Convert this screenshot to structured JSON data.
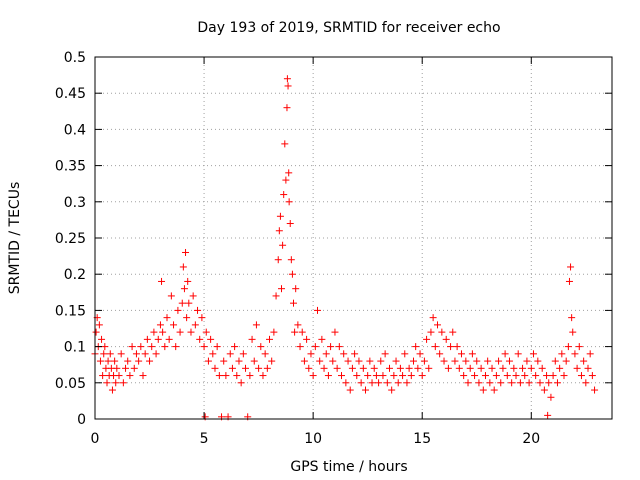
{
  "chart_data": {
    "type": "scatter",
    "title": "Day 193 of 2019, SRMTID for receiver echo",
    "xlabel": "GPS time / hours",
    "ylabel": "SRMTID / TECUs",
    "xlim": [
      0,
      23.7
    ],
    "ylim": [
      0,
      0.5
    ],
    "xticks": [
      0,
      5,
      10,
      15,
      20
    ],
    "xtick_labels": [
      "0",
      "5",
      "10",
      "15",
      "20"
    ],
    "yticks": [
      0,
      0.05,
      0.1,
      0.15,
      0.2,
      0.25,
      0.3,
      0.35,
      0.4,
      0.45,
      0.5
    ],
    "ytick_labels": [
      "0",
      "0.05",
      "0.1",
      "0.15",
      "0.2",
      "0.25",
      "0.3",
      "0.35",
      "0.4",
      "0.45",
      "0.5"
    ],
    "grid": true,
    "marker": "+",
    "color": "#ff0000",
    "series": [
      {
        "name": "SRMTID",
        "points": [
          [
            0.0,
            0.09
          ],
          [
            0.05,
            0.12
          ],
          [
            0.1,
            0.14
          ],
          [
            0.15,
            0.1
          ],
          [
            0.2,
            0.13
          ],
          [
            0.25,
            0.08
          ],
          [
            0.3,
            0.11
          ],
          [
            0.35,
            0.06
          ],
          [
            0.4,
            0.09
          ],
          [
            0.45,
            0.1
          ],
          [
            0.5,
            0.07
          ],
          [
            0.55,
            0.05
          ],
          [
            0.6,
            0.08
          ],
          [
            0.65,
            0.06
          ],
          [
            0.7,
            0.09
          ],
          [
            0.75,
            0.07
          ],
          [
            0.8,
            0.04
          ],
          [
            0.85,
            0.06
          ],
          [
            0.9,
            0.08
          ],
          [
            0.95,
            0.05
          ],
          [
            1.0,
            0.07
          ],
          [
            1.1,
            0.06
          ],
          [
            1.2,
            0.09
          ],
          [
            1.3,
            0.05
          ],
          [
            1.4,
            0.07
          ],
          [
            1.5,
            0.08
          ],
          [
            1.6,
            0.06
          ],
          [
            1.7,
            0.1
          ],
          [
            1.8,
            0.07
          ],
          [
            1.9,
            0.09
          ],
          [
            2.0,
            0.08
          ],
          [
            2.1,
            0.1
          ],
          [
            2.2,
            0.06
          ],
          [
            2.3,
            0.09
          ],
          [
            2.4,
            0.11
          ],
          [
            2.5,
            0.08
          ],
          [
            2.6,
            0.1
          ],
          [
            2.7,
            0.12
          ],
          [
            2.8,
            0.09
          ],
          [
            2.9,
            0.11
          ],
          [
            3.0,
            0.13
          ],
          [
            3.05,
            0.19
          ],
          [
            3.1,
            0.12
          ],
          [
            3.2,
            0.1
          ],
          [
            3.3,
            0.14
          ],
          [
            3.4,
            0.11
          ],
          [
            3.5,
            0.17
          ],
          [
            3.6,
            0.13
          ],
          [
            3.7,
            0.1
          ],
          [
            3.8,
            0.15
          ],
          [
            3.9,
            0.12
          ],
          [
            4.0,
            0.16
          ],
          [
            4.05,
            0.21
          ],
          [
            4.1,
            0.18
          ],
          [
            4.15,
            0.23
          ],
          [
            4.2,
            0.14
          ],
          [
            4.25,
            0.19
          ],
          [
            4.3,
            0.16
          ],
          [
            4.4,
            0.12
          ],
          [
            4.5,
            0.17
          ],
          [
            4.6,
            0.13
          ],
          [
            4.7,
            0.15
          ],
          [
            4.8,
            0.11
          ],
          [
            4.9,
            0.14
          ],
          [
            5.0,
            0.1
          ],
          [
            5.05,
            0.003
          ],
          [
            5.1,
            0.12
          ],
          [
            5.2,
            0.08
          ],
          [
            5.3,
            0.11
          ],
          [
            5.4,
            0.09
          ],
          [
            5.5,
            0.07
          ],
          [
            5.6,
            0.1
          ],
          [
            5.7,
            0.06
          ],
          [
            5.8,
            0.003
          ],
          [
            5.9,
            0.08
          ],
          [
            6.0,
            0.06
          ],
          [
            6.1,
            0.003
          ],
          [
            6.2,
            0.09
          ],
          [
            6.3,
            0.07
          ],
          [
            6.4,
            0.1
          ],
          [
            6.5,
            0.06
          ],
          [
            6.6,
            0.08
          ],
          [
            6.7,
            0.05
          ],
          [
            6.8,
            0.09
          ],
          [
            6.9,
            0.07
          ],
          [
            7.0,
            0.003
          ],
          [
            7.1,
            0.06
          ],
          [
            7.2,
            0.11
          ],
          [
            7.3,
            0.08
          ],
          [
            7.4,
            0.13
          ],
          [
            7.5,
            0.07
          ],
          [
            7.6,
            0.1
          ],
          [
            7.7,
            0.06
          ],
          [
            7.8,
            0.09
          ],
          [
            7.9,
            0.07
          ],
          [
            8.0,
            0.11
          ],
          [
            8.1,
            0.08
          ],
          [
            8.2,
            0.12
          ],
          [
            8.3,
            0.17
          ],
          [
            8.4,
            0.22
          ],
          [
            8.45,
            0.26
          ],
          [
            8.5,
            0.28
          ],
          [
            8.55,
            0.18
          ],
          [
            8.6,
            0.24
          ],
          [
            8.65,
            0.31
          ],
          [
            8.7,
            0.38
          ],
          [
            8.75,
            0.33
          ],
          [
            8.8,
            0.43
          ],
          [
            8.82,
            0.47
          ],
          [
            8.85,
            0.46
          ],
          [
            8.88,
            0.34
          ],
          [
            8.9,
            0.3
          ],
          [
            8.95,
            0.27
          ],
          [
            9.0,
            0.22
          ],
          [
            9.05,
            0.2
          ],
          [
            9.1,
            0.16
          ],
          [
            9.15,
            0.12
          ],
          [
            9.2,
            0.18
          ],
          [
            9.3,
            0.13
          ],
          [
            9.4,
            0.1
          ],
          [
            9.5,
            0.12
          ],
          [
            9.6,
            0.08
          ],
          [
            9.7,
            0.11
          ],
          [
            9.8,
            0.07
          ],
          [
            9.9,
            0.09
          ],
          [
            10.0,
            0.06
          ],
          [
            10.1,
            0.1
          ],
          [
            10.2,
            0.15
          ],
          [
            10.3,
            0.08
          ],
          [
            10.4,
            0.11
          ],
          [
            10.5,
            0.07
          ],
          [
            10.6,
            0.09
          ],
          [
            10.7,
            0.06
          ],
          [
            10.8,
            0.1
          ],
          [
            10.9,
            0.08
          ],
          [
            11.0,
            0.12
          ],
          [
            11.1,
            0.07
          ],
          [
            11.2,
            0.1
          ],
          [
            11.3,
            0.06
          ],
          [
            11.4,
            0.09
          ],
          [
            11.5,
            0.05
          ],
          [
            11.6,
            0.08
          ],
          [
            11.7,
            0.04
          ],
          [
            11.8,
            0.07
          ],
          [
            11.9,
            0.09
          ],
          [
            12.0,
            0.06
          ],
          [
            12.1,
            0.08
          ],
          [
            12.2,
            0.05
          ],
          [
            12.3,
            0.07
          ],
          [
            12.4,
            0.04
          ],
          [
            12.5,
            0.06
          ],
          [
            12.6,
            0.08
          ],
          [
            12.7,
            0.05
          ],
          [
            12.8,
            0.07
          ],
          [
            12.9,
            0.06
          ],
          [
            13.0,
            0.05
          ],
          [
            13.1,
            0.08
          ],
          [
            13.2,
            0.06
          ],
          [
            13.3,
            0.09
          ],
          [
            13.4,
            0.05
          ],
          [
            13.5,
            0.07
          ],
          [
            13.6,
            0.04
          ],
          [
            13.7,
            0.06
          ],
          [
            13.8,
            0.08
          ],
          [
            13.9,
            0.05
          ],
          [
            14.0,
            0.07
          ],
          [
            14.1,
            0.06
          ],
          [
            14.2,
            0.09
          ],
          [
            14.3,
            0.05
          ],
          [
            14.4,
            0.07
          ],
          [
            14.5,
            0.06
          ],
          [
            14.6,
            0.08
          ],
          [
            14.7,
            0.1
          ],
          [
            14.8,
            0.07
          ],
          [
            14.9,
            0.09
          ],
          [
            15.0,
            0.06
          ],
          [
            15.1,
            0.08
          ],
          [
            15.2,
            0.11
          ],
          [
            15.3,
            0.07
          ],
          [
            15.4,
            0.12
          ],
          [
            15.5,
            0.14
          ],
          [
            15.6,
            0.1
          ],
          [
            15.7,
            0.13
          ],
          [
            15.8,
            0.09
          ],
          [
            15.9,
            0.12
          ],
          [
            16.0,
            0.08
          ],
          [
            16.1,
            0.11
          ],
          [
            16.2,
            0.07
          ],
          [
            16.3,
            0.1
          ],
          [
            16.4,
            0.12
          ],
          [
            16.5,
            0.08
          ],
          [
            16.6,
            0.1
          ],
          [
            16.7,
            0.07
          ],
          [
            16.8,
            0.09
          ],
          [
            16.9,
            0.06
          ],
          [
            17.0,
            0.08
          ],
          [
            17.1,
            0.05
          ],
          [
            17.2,
            0.07
          ],
          [
            17.3,
            0.09
          ],
          [
            17.4,
            0.06
          ],
          [
            17.5,
            0.08
          ],
          [
            17.6,
            0.05
          ],
          [
            17.7,
            0.07
          ],
          [
            17.8,
            0.04
          ],
          [
            17.9,
            0.06
          ],
          [
            18.0,
            0.08
          ],
          [
            18.1,
            0.05
          ],
          [
            18.2,
            0.07
          ],
          [
            18.3,
            0.04
          ],
          [
            18.4,
            0.06
          ],
          [
            18.5,
            0.08
          ],
          [
            18.6,
            0.05
          ],
          [
            18.7,
            0.07
          ],
          [
            18.8,
            0.09
          ],
          [
            18.9,
            0.06
          ],
          [
            19.0,
            0.08
          ],
          [
            19.1,
            0.05
          ],
          [
            19.2,
            0.07
          ],
          [
            19.3,
            0.06
          ],
          [
            19.4,
            0.09
          ],
          [
            19.5,
            0.05
          ],
          [
            19.6,
            0.07
          ],
          [
            19.7,
            0.06
          ],
          [
            19.8,
            0.08
          ],
          [
            19.9,
            0.05
          ],
          [
            20.0,
            0.07
          ],
          [
            20.1,
            0.09
          ],
          [
            20.2,
            0.06
          ],
          [
            20.3,
            0.08
          ],
          [
            20.4,
            0.05
          ],
          [
            20.5,
            0.07
          ],
          [
            20.6,
            0.04
          ],
          [
            20.7,
            0.06
          ],
          [
            20.75,
            0.005
          ],
          [
            20.8,
            0.05
          ],
          [
            20.9,
            0.03
          ],
          [
            21.0,
            0.06
          ],
          [
            21.1,
            0.08
          ],
          [
            21.2,
            0.05
          ],
          [
            21.3,
            0.07
          ],
          [
            21.4,
            0.09
          ],
          [
            21.5,
            0.06
          ],
          [
            21.6,
            0.08
          ],
          [
            21.7,
            0.1
          ],
          [
            21.75,
            0.19
          ],
          [
            21.8,
            0.21
          ],
          [
            21.85,
            0.14
          ],
          [
            21.9,
            0.12
          ],
          [
            22.0,
            0.09
          ],
          [
            22.1,
            0.07
          ],
          [
            22.2,
            0.1
          ],
          [
            22.3,
            0.06
          ],
          [
            22.4,
            0.08
          ],
          [
            22.5,
            0.05
          ],
          [
            22.6,
            0.07
          ],
          [
            22.7,
            0.09
          ],
          [
            22.8,
            0.06
          ],
          [
            22.9,
            0.04
          ]
        ]
      }
    ]
  }
}
